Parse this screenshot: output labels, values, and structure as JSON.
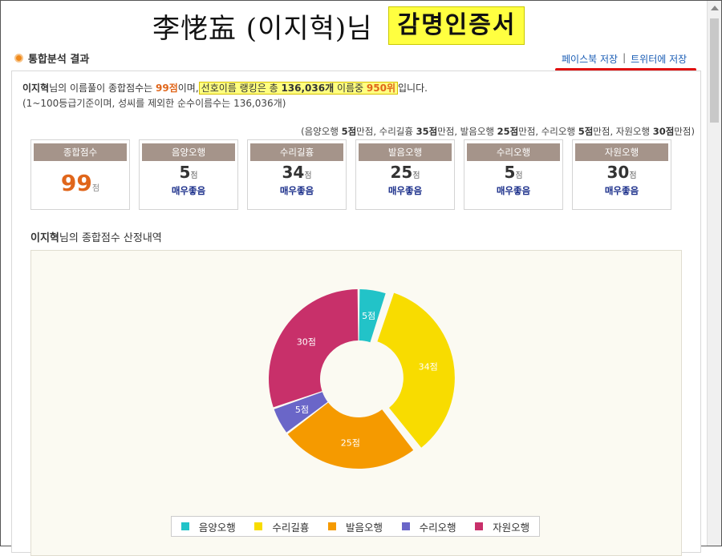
{
  "title": {
    "name": "李恅衁 (이지혁)님",
    "cert": "감명인증서"
  },
  "section": {
    "label": "통합분석 결과"
  },
  "share": {
    "facebook": "페이스북 저장",
    "separator": "|",
    "twitter": "트위터에 저장"
  },
  "summary": {
    "name": "이지혁",
    "text1": "님의 이름풀이 종합점수는 ",
    "score": "99점",
    "text2": "이며,",
    "pref_text": "선호이름 랭킹은 총 ",
    "pref_total": "136,036개",
    "pref_mid": " 이름중 ",
    "pref_rank": "950위",
    "text3": "입니다.",
    "note": "(1~100등급기준이며, 성씨를 제외한 순수이름수는 136,036개)"
  },
  "max_info": {
    "open": "(음양오행 ",
    "a": "5점",
    "a_t": "만점, 수리길흉 ",
    "b": "35점",
    "b_t": "만점, 발음오행 ",
    "c": "25점",
    "c_t": "만점, 수리오행 ",
    "d": "5점",
    "d_t": "만점, 자원오행 ",
    "e": "30점",
    "e_t": "만점)"
  },
  "cards": [
    {
      "label": "종합점수",
      "value": "99",
      "unit": "점",
      "grade": ""
    },
    {
      "label": "음양오행",
      "value": "5",
      "unit": "점",
      "grade": "매우좋음"
    },
    {
      "label": "수리길흉",
      "value": "34",
      "unit": "점",
      "grade": "매우좋음"
    },
    {
      "label": "발음오행",
      "value": "25",
      "unit": "점",
      "grade": "매우좋음"
    },
    {
      "label": "수리오행",
      "value": "5",
      "unit": "점",
      "grade": "매우좋음"
    },
    {
      "label": "자원오행",
      "value": "30",
      "unit": "점",
      "grade": "매우좋음"
    }
  ],
  "detail": {
    "name": "이지혁",
    "text": "님의 종합점수 산정내역"
  },
  "chart_data": {
    "type": "pie",
    "donut": true,
    "categories": [
      "음양오행",
      "수리길흉",
      "발음오행",
      "수리오행",
      "자원오행"
    ],
    "values": [
      5,
      34,
      25,
      5,
      30
    ],
    "labels": [
      "5점",
      "34점",
      "25점",
      "5점",
      "30점"
    ],
    "colors": [
      "#22c3c8",
      "#f8dc00",
      "#f59a00",
      "#6a66c8",
      "#c8306a"
    ],
    "legend_position": "bottom"
  }
}
